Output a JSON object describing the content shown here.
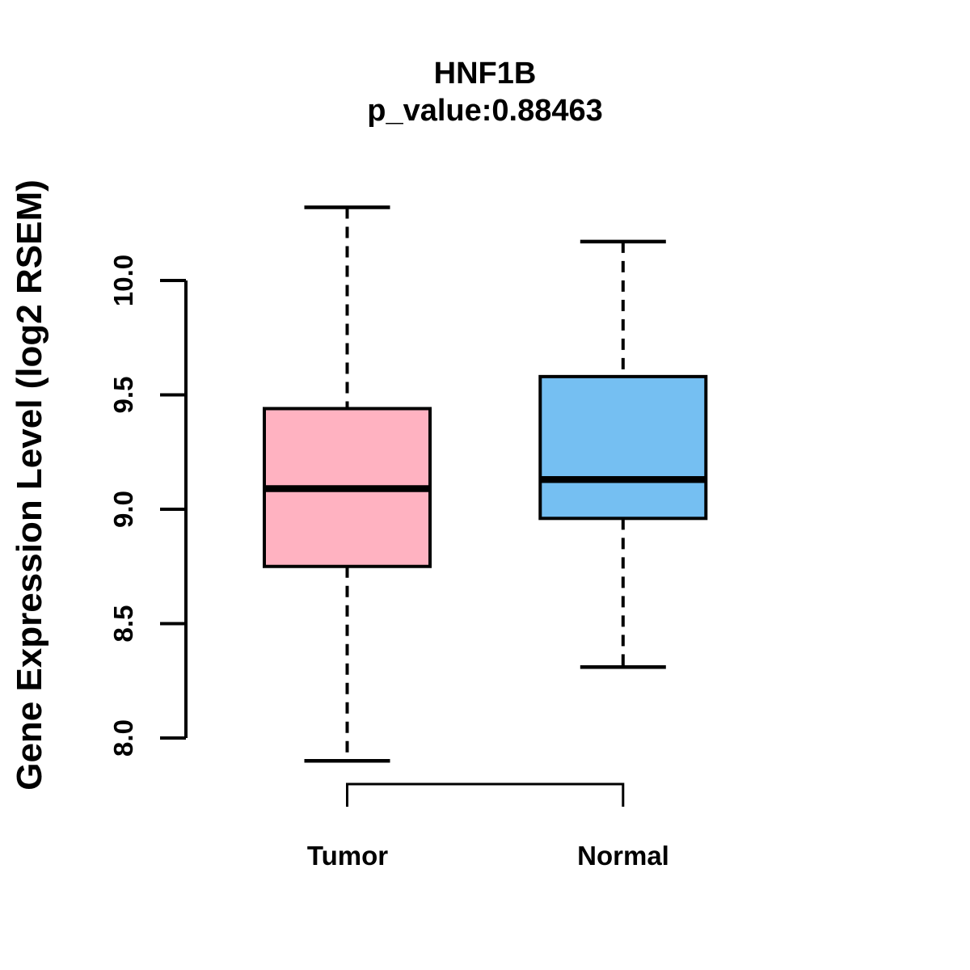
{
  "title": "HNF1B",
  "subtitle": "p_value:0.88463",
  "p_value": 0.88463,
  "ylabel": "Gene Expression Level (log2 RSEM)",
  "colors": {
    "tumor_fill": "#FFB2C1",
    "normal_fill": "#75BFF2",
    "line": "#000000",
    "background": "#FFFFFF"
  },
  "chart_data": {
    "type": "boxplot",
    "title": "HNF1B",
    "subtitle": "p_value:0.88463",
    "ylabel": "Gene Expression Level (log2 RSEM)",
    "categories": [
      "Tumor",
      "Normal"
    ],
    "series": [
      {
        "name": "Tumor",
        "fill": "#FFB2C1",
        "lower_whisker": 7.9,
        "q1": 8.75,
        "median": 9.09,
        "q3": 9.44,
        "upper_whisker": 10.32
      },
      {
        "name": "Normal",
        "fill": "#75BFF2",
        "lower_whisker": 8.31,
        "q1": 8.96,
        "median": 9.13,
        "q3": 9.58,
        "upper_whisker": 10.17
      }
    ],
    "y_ticks": [
      8.0,
      8.5,
      9.0,
      9.5,
      10.0
    ],
    "y_tick_labels": [
      "8.0",
      "8.5",
      "9.0",
      "9.5",
      "10.0"
    ],
    "y_axis_range": [
      8.0,
      10.0
    ],
    "grid": false,
    "whisker_style": "dashed",
    "comparison_bracket": true,
    "legend": "none"
  }
}
